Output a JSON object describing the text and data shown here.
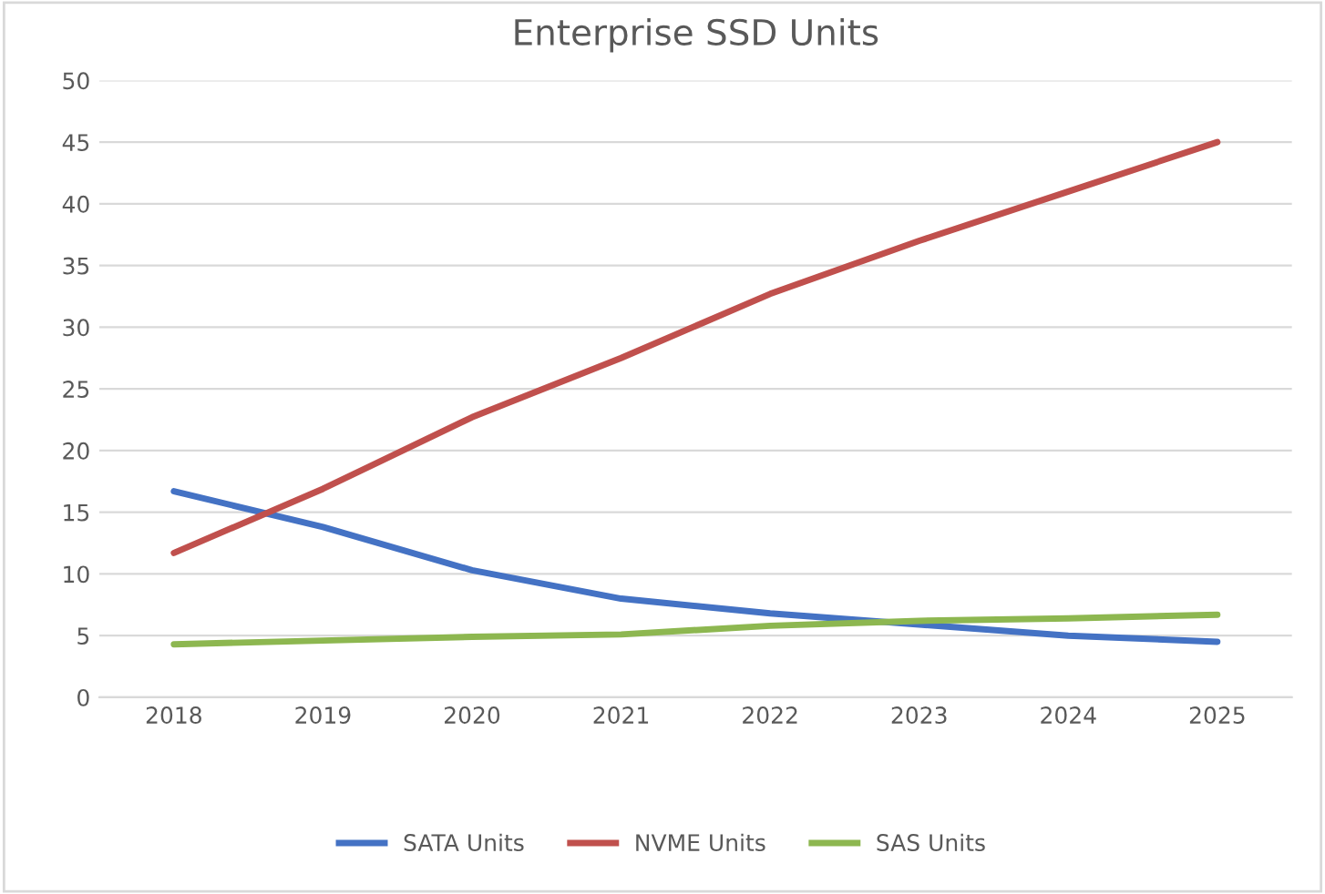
{
  "chart_data": {
    "type": "line",
    "title": "Enterprise SSD Units",
    "categories": [
      "2018",
      "2019",
      "2020",
      "2021",
      "2022",
      "2023",
      "2024",
      "2025"
    ],
    "series": [
      {
        "name": "SATA Units",
        "color": "#4472c4",
        "values": [
          16.7,
          13.8,
          10.3,
          8.0,
          6.8,
          5.9,
          5.0,
          4.5
        ]
      },
      {
        "name": "NVME Units",
        "color": "#c0504d",
        "values": [
          11.7,
          16.9,
          22.7,
          27.5,
          32.7,
          37.0,
          41.0,
          45.0
        ]
      },
      {
        "name": "SAS Units",
        "color": "#8db750",
        "values": [
          4.3,
          4.6,
          4.9,
          5.1,
          5.8,
          6.2,
          6.4,
          6.7
        ]
      }
    ],
    "ylim": [
      0,
      50
    ],
    "yticks": [
      0,
      5,
      10,
      15,
      20,
      25,
      30,
      35,
      40,
      45,
      50
    ],
    "grid": "y",
    "legend": "bottom",
    "marker": "none",
    "line_style": "solid"
  }
}
